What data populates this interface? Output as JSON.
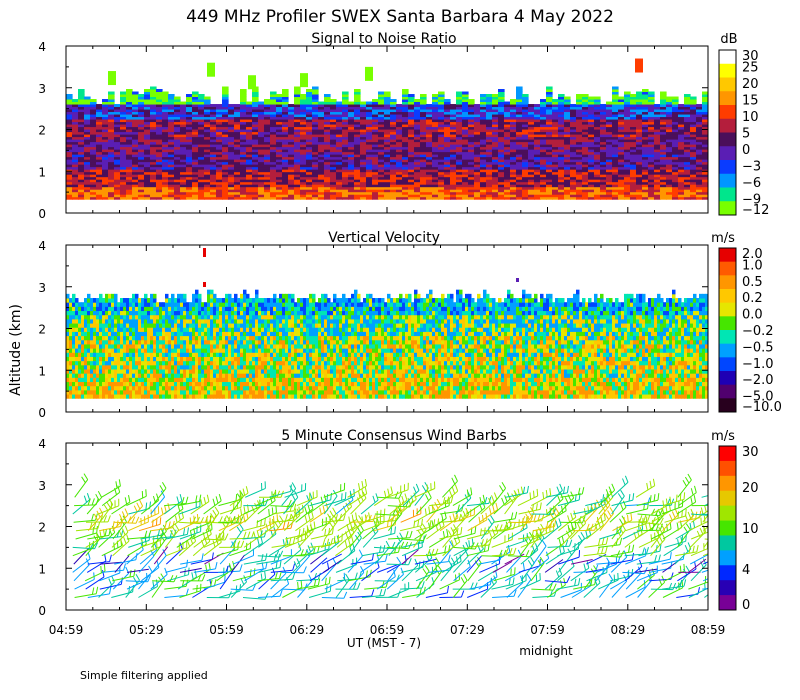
{
  "figure": {
    "title": "449 MHz Profiler SWEX Santa Barbara  4 May 2022",
    "ylabel": "Altitude (km)",
    "xlabel": "UT  (MST - 7)",
    "midnight_label": "midnight",
    "footnote": "Simple filtering applied",
    "x_ticks": [
      "04:59",
      "05:29",
      "05:59",
      "06:29",
      "06:59",
      "07:29",
      "07:59",
      "08:29",
      "08:59"
    ],
    "y_ticks": [
      "0",
      "1",
      "2",
      "3",
      "4"
    ]
  },
  "chart_data": [
    {
      "type": "heatmap",
      "title": "Signal to Noise Ratio",
      "xlabel": "UT  (MST - 7)",
      "ylabel": "Altitude (km)",
      "ylim": [
        0,
        4
      ],
      "colorbar_unit": "dB",
      "colorbar_ticks": [
        "30",
        "25",
        "20",
        "15",
        "10",
        "5",
        "0",
        "−3",
        "−6",
        "−9",
        "−12"
      ],
      "colorbar_colors": [
        "#ffffff",
        "#ffff00",
        "#ffc800",
        "#ff9600",
        "#ff3c00",
        "#b41e3c",
        "#4b0f5a",
        "#5a1eb4",
        "#0a3cff",
        "#0096ff",
        "#00e68c",
        "#78ff00"
      ],
      "profile": [
        {
          "altitude_km": 0.4,
          "snr_db": 18
        },
        {
          "altitude_km": 0.8,
          "snr_db": 12
        },
        {
          "altitude_km": 1.2,
          "snr_db": 5
        },
        {
          "altitude_km": 1.6,
          "snr_db": 7
        },
        {
          "altitude_km": 2.0,
          "snr_db": 10
        },
        {
          "altitude_km": 2.4,
          "snr_db": 1
        },
        {
          "altitude_km": 2.8,
          "snr_db": -9
        },
        {
          "altitude_km": 3.2,
          "snr_db": -12
        }
      ]
    },
    {
      "type": "heatmap",
      "title": "Vertical Velocity",
      "xlabel": "UT  (MST - 7)",
      "ylabel": "Altitude (km)",
      "ylim": [
        0,
        4
      ],
      "colorbar_unit": "m/s",
      "colorbar_ticks": [
        "2.0",
        "1.0",
        "0.5",
        "0.2",
        "0.0",
        "−0.2",
        "−0.5",
        "−1.0",
        "−2.0",
        "−5.0",
        "−10.0"
      ],
      "colorbar_colors": [
        "#e60000",
        "#ff5a00",
        "#ff9600",
        "#ffc800",
        "#e6e600",
        "#46e600",
        "#00e6b4",
        "#00a0ff",
        "#0046ff",
        "#1e00b4",
        "#50006e",
        "#28001e"
      ],
      "profile": [
        {
          "altitude_km": 0.5,
          "w_ms": 0.3
        },
        {
          "altitude_km": 1.0,
          "w_ms": 0.1
        },
        {
          "altitude_km": 1.5,
          "w_ms": 0.0
        },
        {
          "altitude_km": 2.0,
          "w_ms": -0.3
        },
        {
          "altitude_km": 2.5,
          "w_ms": -0.6
        }
      ]
    },
    {
      "type": "scatter",
      "title": "5 Minute Consensus Wind Barbs",
      "xlabel": "UT  (MST - 7)",
      "ylabel": "Altitude (km)",
      "ylim": [
        0,
        4
      ],
      "colorbar_unit": "m/s",
      "colorbar_ticks": [
        "30",
        "20",
        "10",
        "4",
        "0"
      ],
      "colorbar_colors": [
        "#ff0000",
        "#ff5000",
        "#ff9600",
        "#e6c800",
        "#a0e600",
        "#46e600",
        "#00c8a0",
        "#00a0ff",
        "#0028ff",
        "#2800b4",
        "#780096"
      ],
      "profile": [
        {
          "altitude_km": 0.5,
          "speed_ms": 8
        },
        {
          "altitude_km": 1.0,
          "speed_ms": 5
        },
        {
          "altitude_km": 1.5,
          "speed_ms": 12
        },
        {
          "altitude_km": 2.0,
          "speed_ms": 16
        },
        {
          "altitude_km": 2.5,
          "speed_ms": 11
        }
      ]
    }
  ]
}
